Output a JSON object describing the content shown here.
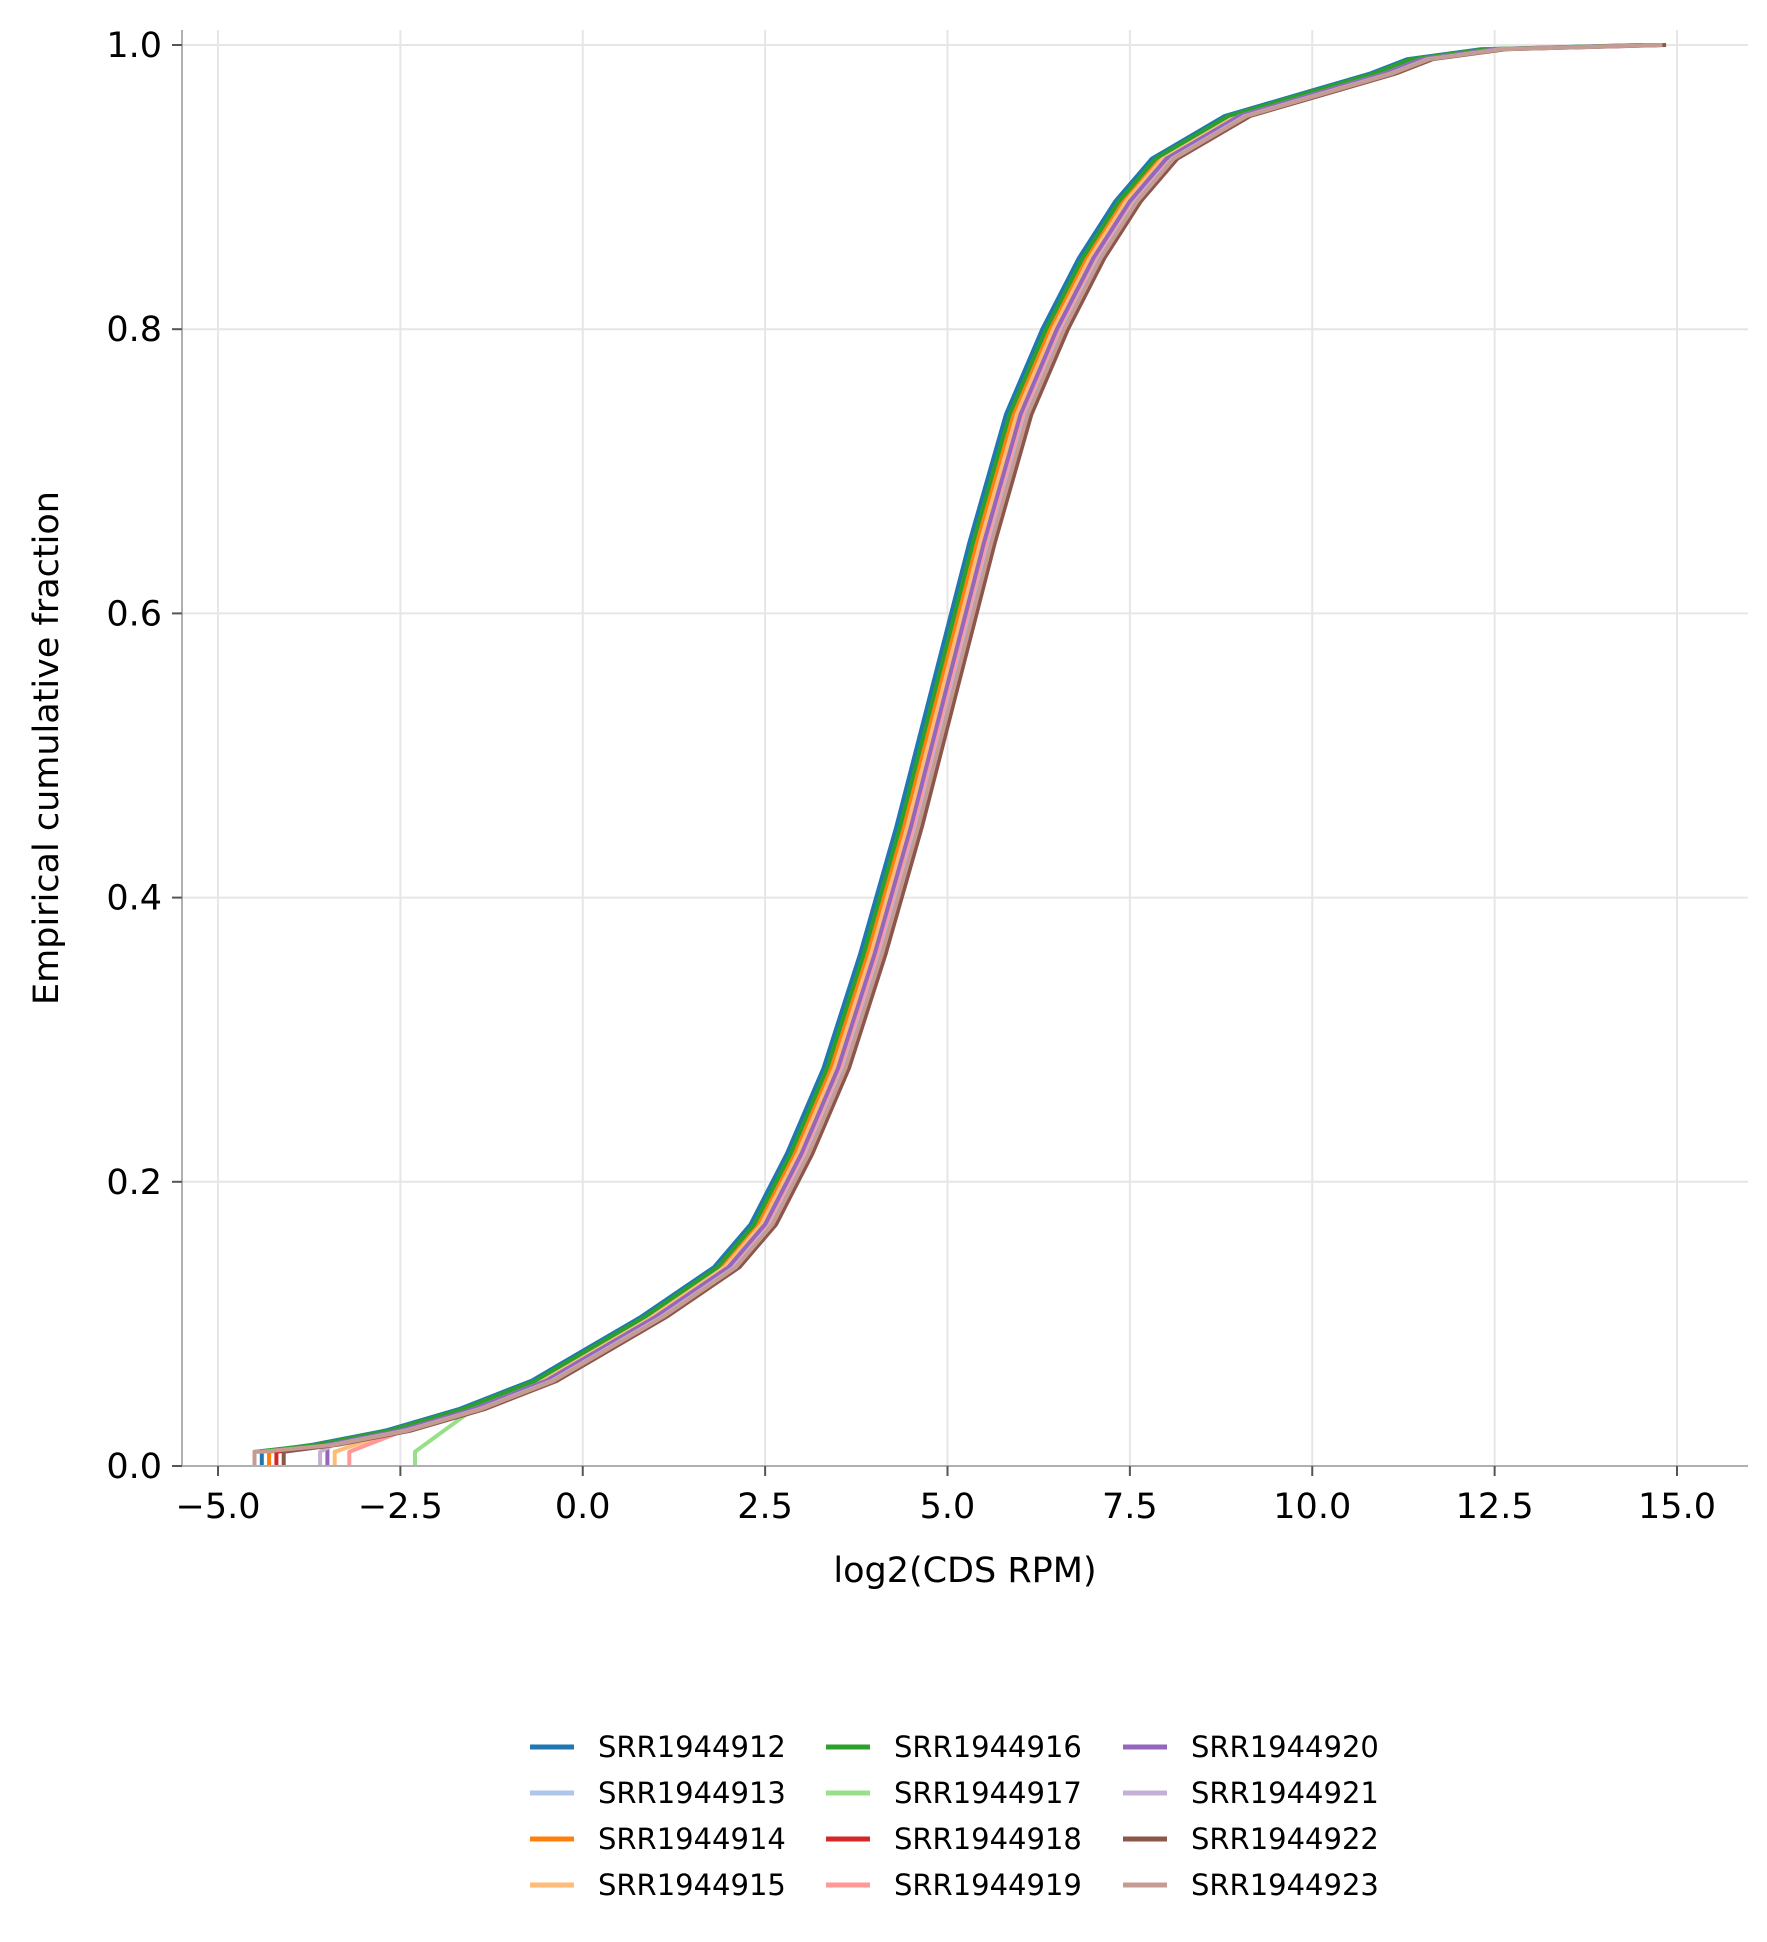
{
  "chart_data": {
    "type": "line",
    "xlabel": "log2(CDS RPM)",
    "ylabel": "Empirical cumulative fraction",
    "xlim": [
      -6.0,
      15.5
    ],
    "ylim": [
      0.0,
      1.0
    ],
    "xticks": [
      -5.0,
      -2.5,
      0.0,
      2.5,
      5.0,
      7.5,
      10.0,
      12.5,
      15.0
    ],
    "xtick_labels": [
      "−5.0",
      "−2.5",
      "0.0",
      "2.5",
      "5.0",
      "7.5",
      "10.0",
      "12.5",
      "15.0"
    ],
    "yticks": [
      0.0,
      0.2,
      0.4,
      0.6,
      0.8,
      1.0
    ],
    "ytick_labels": [
      "0.0",
      "0.2",
      "0.4",
      "0.6",
      "0.8",
      "1.0"
    ],
    "grid": true,
    "legend_position": "bottom-center",
    "legend_columns": 3,
    "curve_x": [
      -4.5,
      -3.5,
      -2.5,
      -1.5,
      -0.5,
      0.0,
      1.0,
      2.0,
      2.5,
      3.0,
      3.5,
      4.0,
      4.5,
      5.0,
      5.5,
      6.0,
      6.5,
      7.0,
      7.5,
      8.0,
      9.0,
      10.0,
      11.0,
      11.5,
      12.5,
      14.7
    ],
    "series": [
      {
        "name": "SRR1944912",
        "color": "#1f77b4",
        "shift": -0.2,
        "start_x": -4.4,
        "y": [
          0.01,
          0.015,
          0.025,
          0.04,
          0.06,
          0.075,
          0.105,
          0.14,
          0.17,
          0.22,
          0.28,
          0.36,
          0.45,
          0.55,
          0.65,
          0.74,
          0.8,
          0.85,
          0.89,
          0.92,
          0.95,
          0.965,
          0.98,
          0.99,
          0.997,
          1.0
        ]
      },
      {
        "name": "SRR1944913",
        "color": "#aec7e8",
        "shift": -0.12,
        "start_x": -4.3,
        "y": [
          0.01,
          0.015,
          0.025,
          0.04,
          0.06,
          0.075,
          0.105,
          0.14,
          0.17,
          0.22,
          0.28,
          0.36,
          0.45,
          0.55,
          0.65,
          0.74,
          0.8,
          0.85,
          0.89,
          0.92,
          0.95,
          0.965,
          0.98,
          0.99,
          0.997,
          1.0
        ]
      },
      {
        "name": "SRR1944914",
        "color": "#ff7f0e",
        "shift": -0.1,
        "start_x": -4.3,
        "y": [
          0.01,
          0.015,
          0.025,
          0.04,
          0.06,
          0.075,
          0.105,
          0.14,
          0.17,
          0.22,
          0.28,
          0.36,
          0.45,
          0.55,
          0.65,
          0.74,
          0.8,
          0.85,
          0.89,
          0.92,
          0.95,
          0.965,
          0.98,
          0.99,
          0.997,
          1.0
        ]
      },
      {
        "name": "SRR1944915",
        "color": "#ffbb78",
        "shift": -0.05,
        "start_x": -3.4,
        "y": [
          0.01,
          0.015,
          0.025,
          0.04,
          0.06,
          0.075,
          0.105,
          0.14,
          0.17,
          0.22,
          0.28,
          0.36,
          0.45,
          0.55,
          0.65,
          0.74,
          0.8,
          0.85,
          0.89,
          0.92,
          0.95,
          0.965,
          0.98,
          0.99,
          0.997,
          1.0
        ]
      },
      {
        "name": "SRR1944916",
        "color": "#2ca02c",
        "shift": -0.15,
        "start_x": -4.5,
        "y": [
          0.01,
          0.015,
          0.025,
          0.04,
          0.06,
          0.075,
          0.105,
          0.14,
          0.17,
          0.22,
          0.28,
          0.36,
          0.45,
          0.55,
          0.65,
          0.74,
          0.8,
          0.85,
          0.89,
          0.92,
          0.95,
          0.965,
          0.98,
          0.99,
          0.997,
          1.0
        ]
      },
      {
        "name": "SRR1944917",
        "color": "#98df8a",
        "shift": 0.0,
        "start_x": -2.3,
        "y": [
          0.01,
          0.015,
          0.025,
          0.04,
          0.06,
          0.075,
          0.105,
          0.14,
          0.17,
          0.22,
          0.28,
          0.36,
          0.45,
          0.55,
          0.65,
          0.74,
          0.8,
          0.85,
          0.89,
          0.92,
          0.95,
          0.965,
          0.98,
          0.99,
          0.997,
          1.0
        ]
      },
      {
        "name": "SRR1944918",
        "color": "#d62728",
        "shift": 0.05,
        "start_x": -4.2,
        "y": [
          0.01,
          0.015,
          0.025,
          0.04,
          0.06,
          0.075,
          0.105,
          0.14,
          0.17,
          0.22,
          0.28,
          0.36,
          0.45,
          0.55,
          0.65,
          0.74,
          0.8,
          0.85,
          0.89,
          0.92,
          0.95,
          0.965,
          0.98,
          0.99,
          0.997,
          1.0
        ]
      },
      {
        "name": "SRR1944919",
        "color": "#ff9896",
        "shift": 0.05,
        "start_x": -3.2,
        "y": [
          0.01,
          0.015,
          0.025,
          0.04,
          0.06,
          0.075,
          0.105,
          0.14,
          0.17,
          0.22,
          0.28,
          0.36,
          0.45,
          0.55,
          0.65,
          0.74,
          0.8,
          0.85,
          0.89,
          0.92,
          0.95,
          0.965,
          0.98,
          0.99,
          0.997,
          1.0
        ]
      },
      {
        "name": "SRR1944920",
        "color": "#9467bd",
        "shift": 0.0,
        "start_x": -3.5,
        "y": [
          0.01,
          0.015,
          0.025,
          0.04,
          0.06,
          0.075,
          0.105,
          0.14,
          0.17,
          0.22,
          0.28,
          0.36,
          0.45,
          0.55,
          0.65,
          0.74,
          0.8,
          0.85,
          0.89,
          0.92,
          0.95,
          0.965,
          0.98,
          0.99,
          0.997,
          1.0
        ]
      },
      {
        "name": "SRR1944921",
        "color": "#c5b0d5",
        "shift": 0.08,
        "start_x": -3.6,
        "y": [
          0.01,
          0.015,
          0.025,
          0.04,
          0.06,
          0.075,
          0.105,
          0.14,
          0.17,
          0.22,
          0.28,
          0.36,
          0.45,
          0.55,
          0.65,
          0.74,
          0.8,
          0.85,
          0.89,
          0.92,
          0.95,
          0.965,
          0.98,
          0.99,
          0.997,
          1.0
        ]
      },
      {
        "name": "SRR1944922",
        "color": "#8c564b",
        "shift": 0.15,
        "start_x": -4.1,
        "y": [
          0.01,
          0.015,
          0.025,
          0.04,
          0.06,
          0.075,
          0.105,
          0.14,
          0.17,
          0.22,
          0.28,
          0.36,
          0.45,
          0.55,
          0.65,
          0.74,
          0.8,
          0.85,
          0.89,
          0.92,
          0.95,
          0.965,
          0.98,
          0.99,
          0.997,
          1.0
        ]
      },
      {
        "name": "SRR1944923",
        "color": "#c49c94",
        "shift": 0.1,
        "start_x": -4.5,
        "y": [
          0.01,
          0.015,
          0.025,
          0.04,
          0.06,
          0.075,
          0.105,
          0.14,
          0.17,
          0.22,
          0.28,
          0.36,
          0.45,
          0.55,
          0.65,
          0.74,
          0.8,
          0.85,
          0.89,
          0.92,
          0.95,
          0.965,
          0.98,
          0.99,
          0.997,
          1.0
        ]
      }
    ]
  }
}
